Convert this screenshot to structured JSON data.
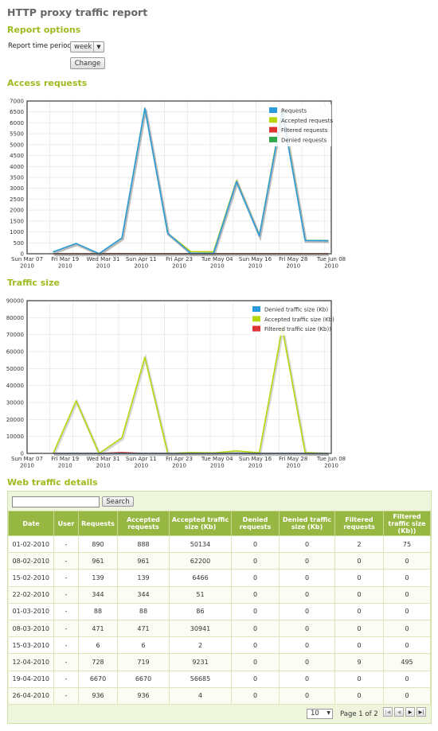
{
  "page": {
    "title": "HTTP proxy traffic report"
  },
  "options": {
    "heading": "Report options",
    "period_label": "Report time period:",
    "period_value": "week",
    "change_label": "Change"
  },
  "sections": {
    "access": "Access requests",
    "traffic": "Traffic size",
    "details": "Web traffic details"
  },
  "chart_data": [
    {
      "type": "line",
      "ylim": [
        0,
        7000
      ],
      "yticks": [
        0,
        500,
        1000,
        1500,
        2000,
        2500,
        3000,
        3500,
        4000,
        4500,
        5000,
        5500,
        6000,
        6500,
        7000
      ],
      "xtick_labels": [
        [
          "Sun Mar 07",
          "2010"
        ],
        [
          "Fri Mar 19",
          "2010"
        ],
        [
          "Wed Mar 31",
          "2010"
        ],
        [
          "Sun Apr 11",
          "2010"
        ],
        [
          "Fri Apr 23",
          "2010"
        ],
        [
          "Tue May 04",
          "2010"
        ],
        [
          "Sun May 16",
          "2010"
        ],
        [
          "Fri May 28",
          "2010"
        ],
        [
          "Tue Jun 08",
          "2010"
        ]
      ],
      "x": [
        "2010-03-15",
        "2010-03-22",
        "2010-03-29",
        "2010-04-05",
        "2010-04-12",
        "2010-04-19",
        "2010-04-26",
        "2010-05-03",
        "2010-05-10",
        "2010-05-17",
        "2010-05-24",
        "2010-05-31",
        "2010-06-07"
      ],
      "series": [
        {
          "name": "Requests",
          "color": "#2b9be0",
          "values": [
            88,
            471,
            6,
            728,
            6670,
            936,
            20,
            20,
            3300,
            820,
            6500,
            610,
            600
          ]
        },
        {
          "name": "Accepted requests",
          "color": "#b9d60d",
          "values": [
            88,
            471,
            6,
            719,
            6670,
            936,
            100,
            90,
            3350,
            830,
            6600,
            620,
            610
          ]
        },
        {
          "name": "Filtered requests",
          "color": "#dd3333",
          "values": [
            0,
            0,
            0,
            9,
            0,
            0,
            0,
            0,
            0,
            0,
            0,
            0,
            0
          ]
        },
        {
          "name": "Denied requests",
          "color": "#2ea84a",
          "values": [
            0,
            0,
            0,
            0,
            0,
            0,
            0,
            0,
            0,
            0,
            0,
            0,
            0
          ]
        }
      ],
      "legend": "top-right"
    },
    {
      "type": "line",
      "ylim": [
        0,
        90000
      ],
      "yticks": [
        0,
        10000,
        20000,
        30000,
        40000,
        50000,
        60000,
        70000,
        80000,
        90000
      ],
      "xtick_labels": [
        [
          "Sun Mar 07",
          "2010"
        ],
        [
          "Fri Mar 19",
          "2010"
        ],
        [
          "Wed Mar 31",
          "2010"
        ],
        [
          "Sun Apr 11",
          "2010"
        ],
        [
          "Fri Apr 23",
          "2010"
        ],
        [
          "Tue May 04",
          "2010"
        ],
        [
          "Sun May 16",
          "2010"
        ],
        [
          "Fri May 28",
          "2010"
        ],
        [
          "Tue Jun 08",
          "2010"
        ]
      ],
      "x": [
        "2010-03-15",
        "2010-03-22",
        "2010-03-29",
        "2010-04-05",
        "2010-04-12",
        "2010-04-19",
        "2010-04-26",
        "2010-05-03",
        "2010-05-10",
        "2010-05-17",
        "2010-05-24",
        "2010-05-31",
        "2010-06-07"
      ],
      "series": [
        {
          "name": "Denied traffic size (Kb)",
          "color": "#2b9be0",
          "values": [
            0,
            0,
            0,
            0,
            0,
            0,
            0,
            0,
            0,
            0,
            0,
            0,
            0
          ]
        },
        {
          "name": "Accepted traffic size (Kb)",
          "color": "#b9d60d",
          "values": [
            86,
            30941,
            2,
            9231,
            56685,
            4,
            500,
            300,
            1500,
            400,
            74000,
            500,
            0
          ]
        },
        {
          "name": "Filtered traffic size (Kb))",
          "color": "#dd3333",
          "values": [
            0,
            0,
            0,
            495,
            0,
            0,
            0,
            0,
            0,
            0,
            0,
            0,
            0
          ]
        }
      ],
      "legend": "top-right"
    }
  ],
  "table": {
    "search_label": "Search",
    "search_value": "",
    "columns": [
      "Date",
      "User",
      "Requests",
      "Accepted requests",
      "Accepted traffic size (Kb)",
      "Denied requests",
      "Denied traffic size (Kb)",
      "Filtered requests",
      "Filtered traffic size (Kb))"
    ],
    "rows": [
      [
        "01-02-2010",
        "-",
        "890",
        "888",
        "50134",
        "0",
        "0",
        "2",
        "75"
      ],
      [
        "08-02-2010",
        "-",
        "961",
        "961",
        "62200",
        "0",
        "0",
        "0",
        "0"
      ],
      [
        "15-02-2010",
        "-",
        "139",
        "139",
        "6466",
        "0",
        "0",
        "0",
        "0"
      ],
      [
        "22-02-2010",
        "-",
        "344",
        "344",
        "51",
        "0",
        "0",
        "0",
        "0"
      ],
      [
        "01-03-2010",
        "-",
        "88",
        "88",
        "86",
        "0",
        "0",
        "0",
        "0"
      ],
      [
        "08-03-2010",
        "-",
        "471",
        "471",
        "30941",
        "0",
        "0",
        "0",
        "0"
      ],
      [
        "15-03-2010",
        "-",
        "6",
        "6",
        "2",
        "0",
        "0",
        "0",
        "0"
      ],
      [
        "12-04-2010",
        "-",
        "728",
        "719",
        "9231",
        "0",
        "0",
        "9",
        "495"
      ],
      [
        "19-04-2010",
        "-",
        "6670",
        "6670",
        "56685",
        "0",
        "0",
        "0",
        "0"
      ],
      [
        "26-04-2010",
        "-",
        "936",
        "936",
        "4",
        "0",
        "0",
        "0",
        "0"
      ]
    ],
    "page_size": "10",
    "page_info": "Page 1 of 2"
  }
}
